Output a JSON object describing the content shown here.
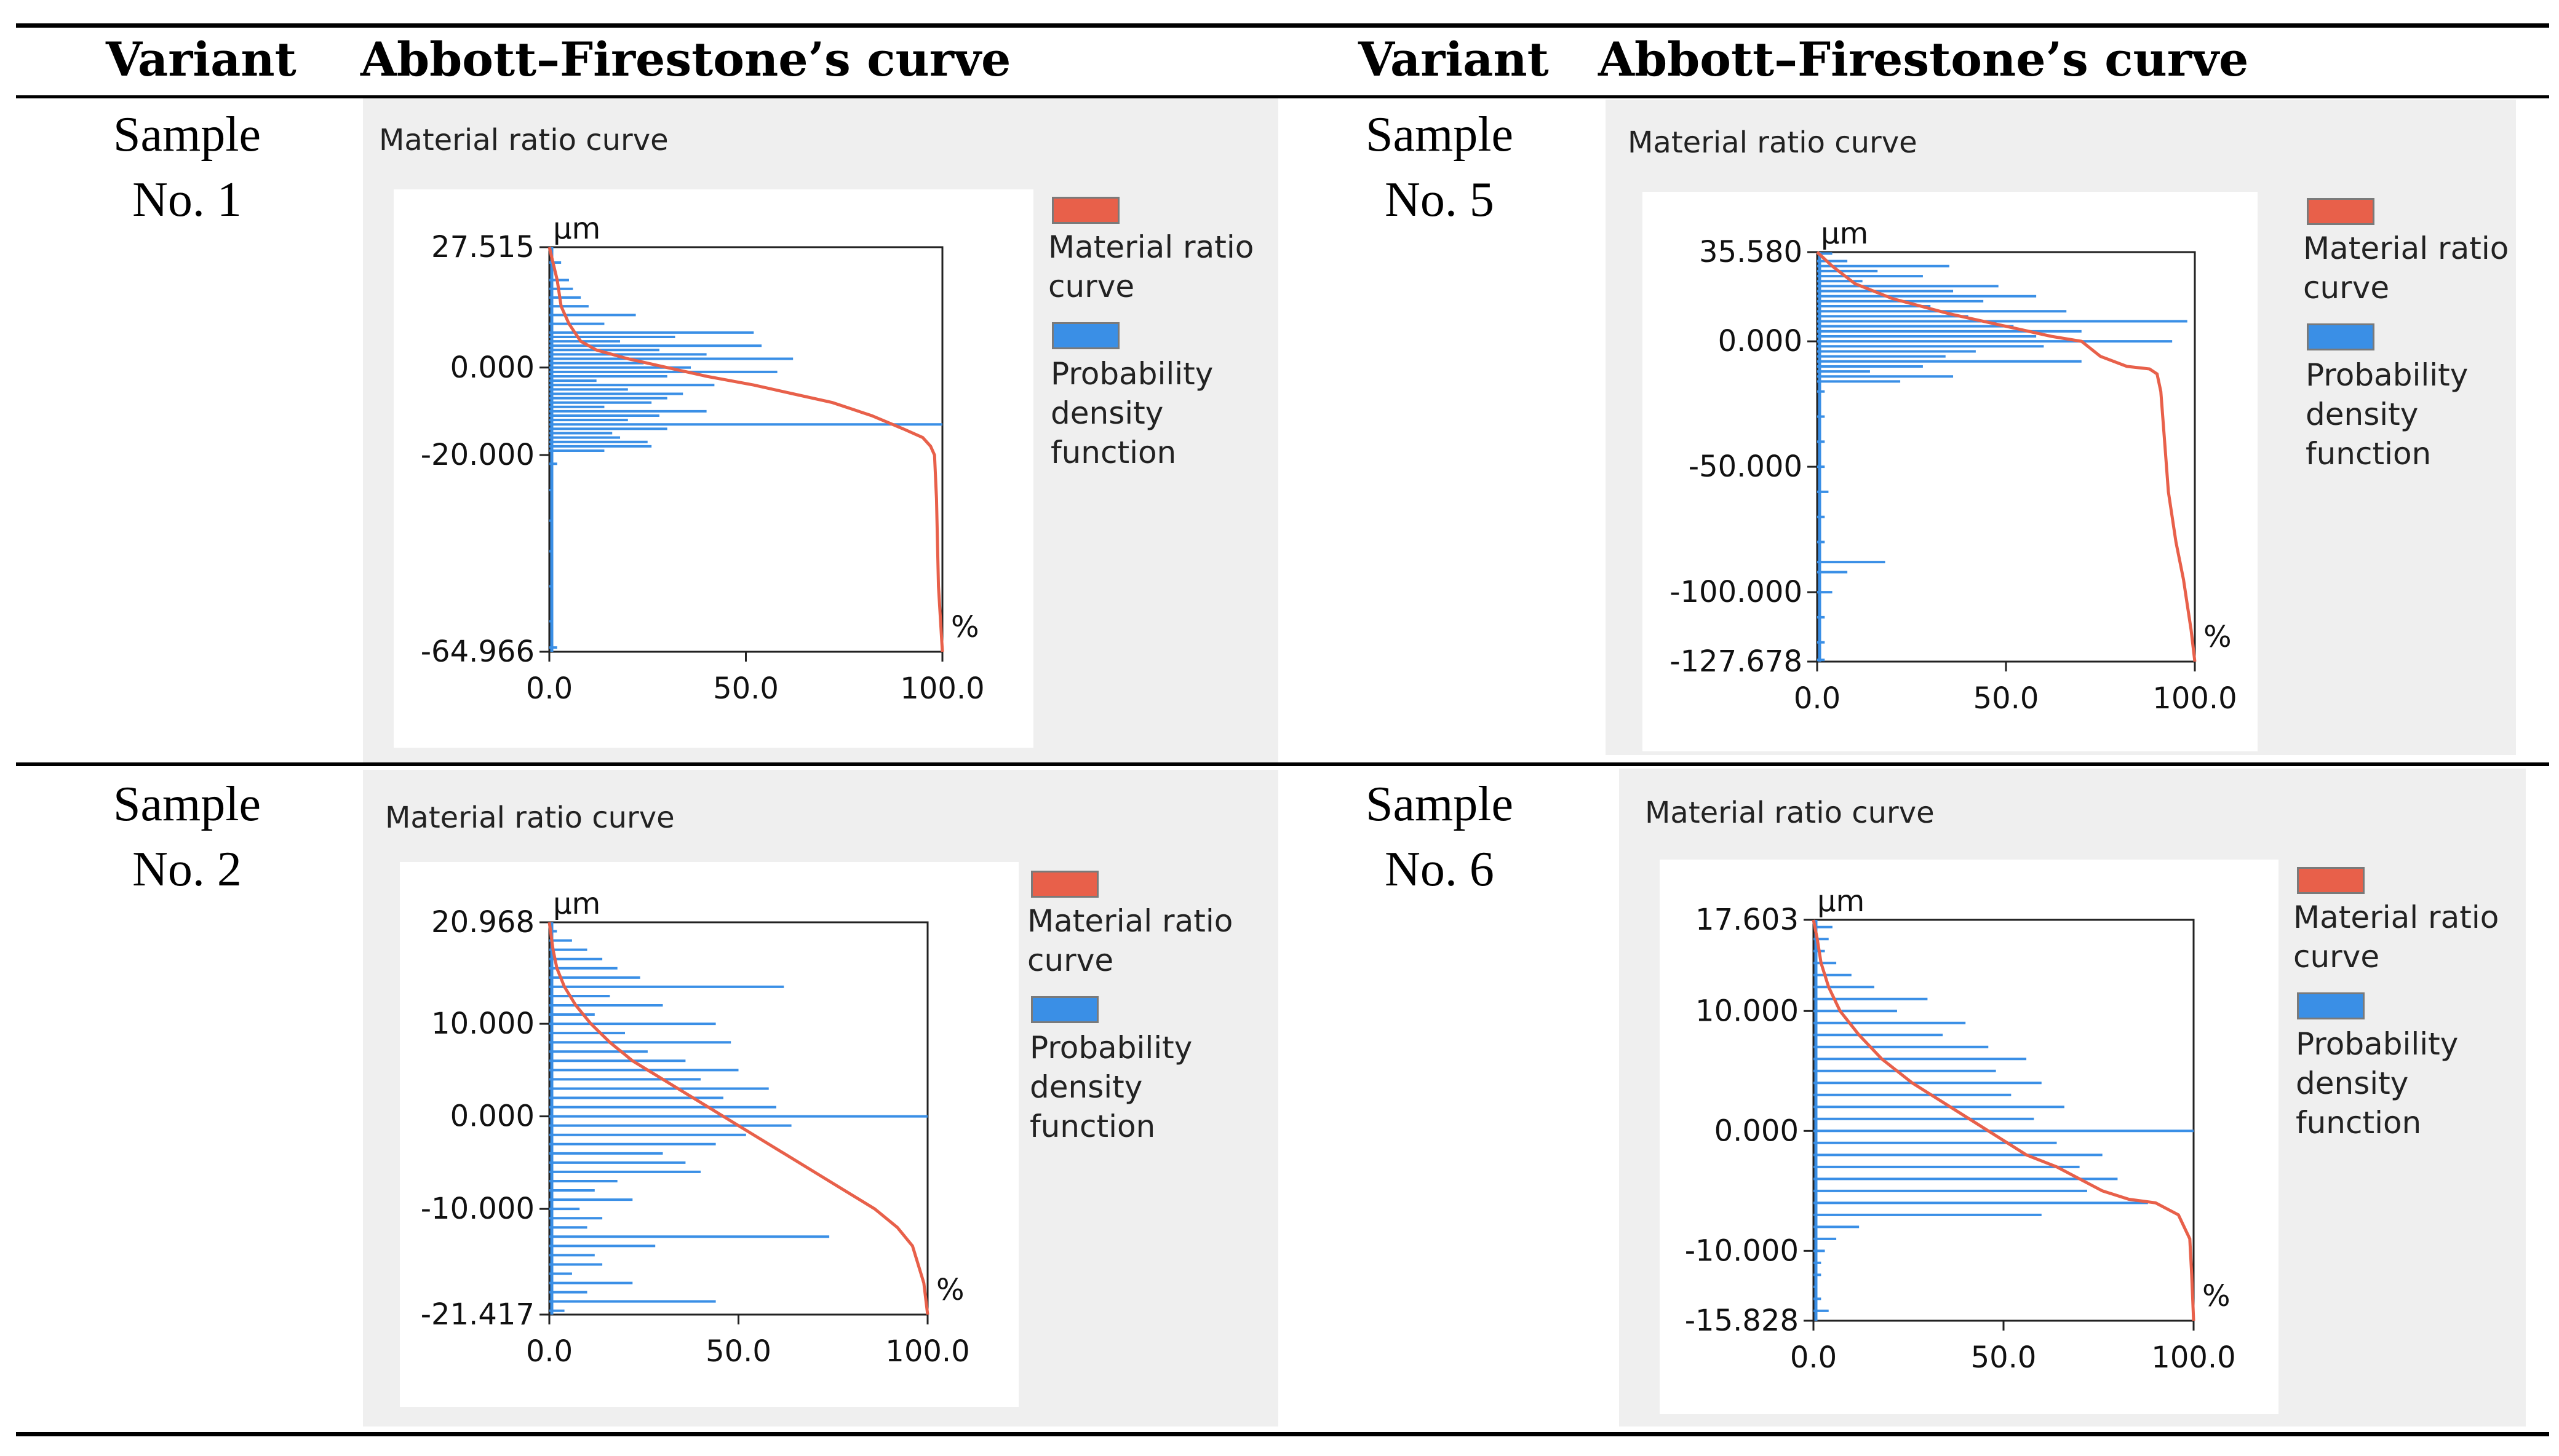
{
  "table": {
    "col_headers": [
      "Variant",
      "Abbott–Firestone’s curve",
      "Variant",
      "Abbott–Firestone’s curve"
    ],
    "variants": [
      {
        "line1": "Sample",
        "line2": "No. 1"
      },
      {
        "line1": "Sample",
        "line2": "No. 5"
      },
      {
        "line1": "Sample",
        "line2": "No. 2"
      },
      {
        "line1": "Sample",
        "line2": "No. 6"
      }
    ]
  },
  "colors": {
    "curve": "#e8604a",
    "pdf": "#3a8fe6"
  },
  "legend": {
    "curve_label": "Material ratio\ncurve",
    "pdf_label": "Probability\ndensity\nfunction"
  },
  "chart_data": [
    {
      "type": "line",
      "panel_title": "Material ratio curve",
      "ylabel": "µm",
      "xlabel": "%",
      "xlim": [
        0,
        100
      ],
      "ylim": [
        -64.966,
        27.515
      ],
      "xticks": [
        "0.0",
        "50.0",
        "100.0"
      ],
      "yticks": [
        "27.515",
        "0.000",
        "-20.000",
        "-64.966"
      ],
      "series": [
        {
          "name": "Material ratio curve",
          "x": [
            0,
            2,
            3,
            5,
            8,
            12,
            20,
            30,
            40,
            52,
            62,
            72,
            82,
            90,
            95,
            97,
            98,
            98.5,
            99,
            100
          ],
          "y": [
            27.515,
            20,
            14,
            10,
            6,
            4,
            2,
            0,
            -2,
            -4,
            -6,
            -8,
            -11,
            -14,
            -16,
            -18,
            -20,
            -30,
            -50,
            -64.966
          ]
        },
        {
          "name": "Probability density function",
          "y": [
            27,
            24,
            20,
            18,
            16,
            14,
            12,
            10,
            8,
            7,
            6,
            5,
            4,
            3,
            2,
            1,
            0,
            -1,
            -2,
            -3,
            -4,
            -5,
            -6,
            -7,
            -8,
            -9,
            -10,
            -11,
            -12,
            -13,
            -14,
            -15,
            -16,
            -17,
            -18,
            -19,
            -22,
            -28,
            -35,
            -42,
            -50,
            -58,
            -64
          ],
          "x": [
            1,
            3,
            5,
            6,
            8,
            10,
            22,
            14,
            52,
            32,
            18,
            54,
            28,
            40,
            62,
            24,
            36,
            58,
            30,
            12,
            42,
            20,
            34,
            30,
            26,
            14,
            40,
            28,
            20,
            100,
            30,
            16,
            18,
            25,
            26,
            14,
            2,
            1,
            1,
            1,
            1,
            1,
            2
          ]
        }
      ]
    },
    {
      "type": "line",
      "panel_title": "Material ratio curve",
      "ylabel": "µm",
      "xlabel": "%",
      "xlim": [
        0,
        100
      ],
      "ylim": [
        -127.678,
        35.58
      ],
      "xticks": [
        "0.0",
        "50.0",
        "100.0"
      ],
      "yticks": [
        "35.580",
        "0.000",
        "-50.000",
        "-100.000",
        "-127.678"
      ],
      "series": [
        {
          "name": "Material ratio curve",
          "x": [
            0,
            4,
            10,
            20,
            35,
            50,
            62,
            70,
            75,
            82,
            88,
            90,
            91,
            92,
            93,
            95,
            97,
            98,
            99,
            100
          ],
          "y": [
            35.58,
            30,
            23,
            17,
            11,
            6,
            2,
            0,
            -6,
            -10,
            -11,
            -13,
            -20,
            -40,
            -60,
            -80,
            -95,
            -105,
            -115,
            -127.678
          ]
        },
        {
          "name": "Probability density function",
          "y": [
            35,
            32,
            30,
            28,
            26,
            24,
            22,
            20,
            18,
            16,
            14,
            12,
            10,
            8,
            6,
            4,
            2,
            0,
            -2,
            -4,
            -6,
            -8,
            -10,
            -12,
            -14,
            -16,
            -20,
            -30,
            -40,
            -50,
            -60,
            -70,
            -80,
            -88,
            -92,
            -100,
            -110,
            -120,
            -127
          ],
          "x": [
            4,
            8,
            35,
            16,
            28,
            12,
            48,
            36,
            58,
            44,
            30,
            66,
            40,
            98,
            52,
            70,
            58,
            94,
            60,
            42,
            34,
            70,
            28,
            14,
            36,
            22,
            2,
            2,
            2,
            2,
            3,
            2,
            2,
            18,
            8,
            4,
            2,
            2,
            2
          ]
        }
      ]
    },
    {
      "type": "line",
      "panel_title": "Material ratio curve",
      "ylabel": "µm",
      "xlabel": "%",
      "xlim": [
        0,
        100
      ],
      "ylim": [
        -21.417,
        20.968
      ],
      "xticks": [
        "0.0",
        "50.0",
        "100.0"
      ],
      "yticks": [
        "20.968",
        "10.000",
        "0.000",
        "-10.000",
        "-21.417"
      ],
      "series": [
        {
          "name": "Material ratio curve",
          "x": [
            0,
            1,
            2,
            4,
            7,
            11,
            16,
            22,
            30,
            38,
            46,
            54,
            62,
            70,
            78,
            86,
            92,
            96,
            99,
            100
          ],
          "y": [
            20.968,
            18,
            16,
            14,
            12,
            10,
            8,
            6,
            4,
            2,
            0,
            -2,
            -4,
            -6,
            -8,
            -10,
            -12,
            -14,
            -18,
            -21.417
          ]
        },
        {
          "name": "Probability density function",
          "y": [
            20,
            19,
            18,
            17,
            16,
            15,
            14,
            13,
            12,
            11,
            10,
            9,
            8,
            7,
            6,
            5,
            4,
            3,
            2,
            1,
            0,
            -1,
            -2,
            -3,
            -4,
            -5,
            -6,
            -7,
            -8,
            -9,
            -10,
            -11,
            -12,
            -13,
            -14,
            -15,
            -16,
            -17,
            -18,
            -19,
            -20,
            -21
          ],
          "x": [
            2,
            6,
            10,
            14,
            18,
            24,
            62,
            16,
            30,
            12,
            44,
            20,
            48,
            26,
            36,
            50,
            40,
            58,
            46,
            60,
            100,
            64,
            52,
            44,
            30,
            36,
            40,
            18,
            12,
            22,
            8,
            14,
            10,
            74,
            28,
            12,
            14,
            6,
            22,
            10,
            44,
            4
          ]
        }
      ]
    },
    {
      "type": "line",
      "panel_title": "Material ratio curve",
      "ylabel": "µm",
      "xlabel": "%",
      "xlim": [
        0,
        100
      ],
      "ylim": [
        -15.828,
        17.603
      ],
      "xticks": [
        "0.0",
        "50.0",
        "100.0"
      ],
      "yticks": [
        "17.603",
        "10.000",
        "0.000",
        "-10.000",
        "-15.828"
      ],
      "series": [
        {
          "name": "Material ratio curve",
          "x": [
            0,
            1,
            2,
            4,
            7,
            12,
            18,
            26,
            36,
            46,
            56,
            64,
            70,
            76,
            83,
            90,
            96,
            99,
            99.5,
            100
          ],
          "y": [
            17.603,
            16,
            14,
            12,
            10,
            8,
            6,
            4,
            2,
            0,
            -2,
            -3,
            -4,
            -5,
            -5.7,
            -6,
            -7,
            -9,
            -12,
            -15.828
          ]
        },
        {
          "name": "Probability density function",
          "y": [
            17,
            16,
            15,
            14,
            13,
            12,
            11,
            10,
            9,
            8,
            7,
            6,
            5,
            4,
            3,
            2,
            1,
            0,
            -1,
            -2,
            -3,
            -4,
            -5,
            -6,
            -7,
            -8,
            -9,
            -10,
            -11,
            -12,
            -13,
            -14,
            -15
          ],
          "x": [
            5,
            4,
            3,
            6,
            10,
            16,
            30,
            22,
            40,
            34,
            46,
            56,
            48,
            60,
            52,
            66,
            58,
            100,
            64,
            76,
            70,
            80,
            72,
            88,
            60,
            12,
            6,
            3,
            2,
            2,
            1,
            2,
            4
          ]
        }
      ]
    }
  ]
}
